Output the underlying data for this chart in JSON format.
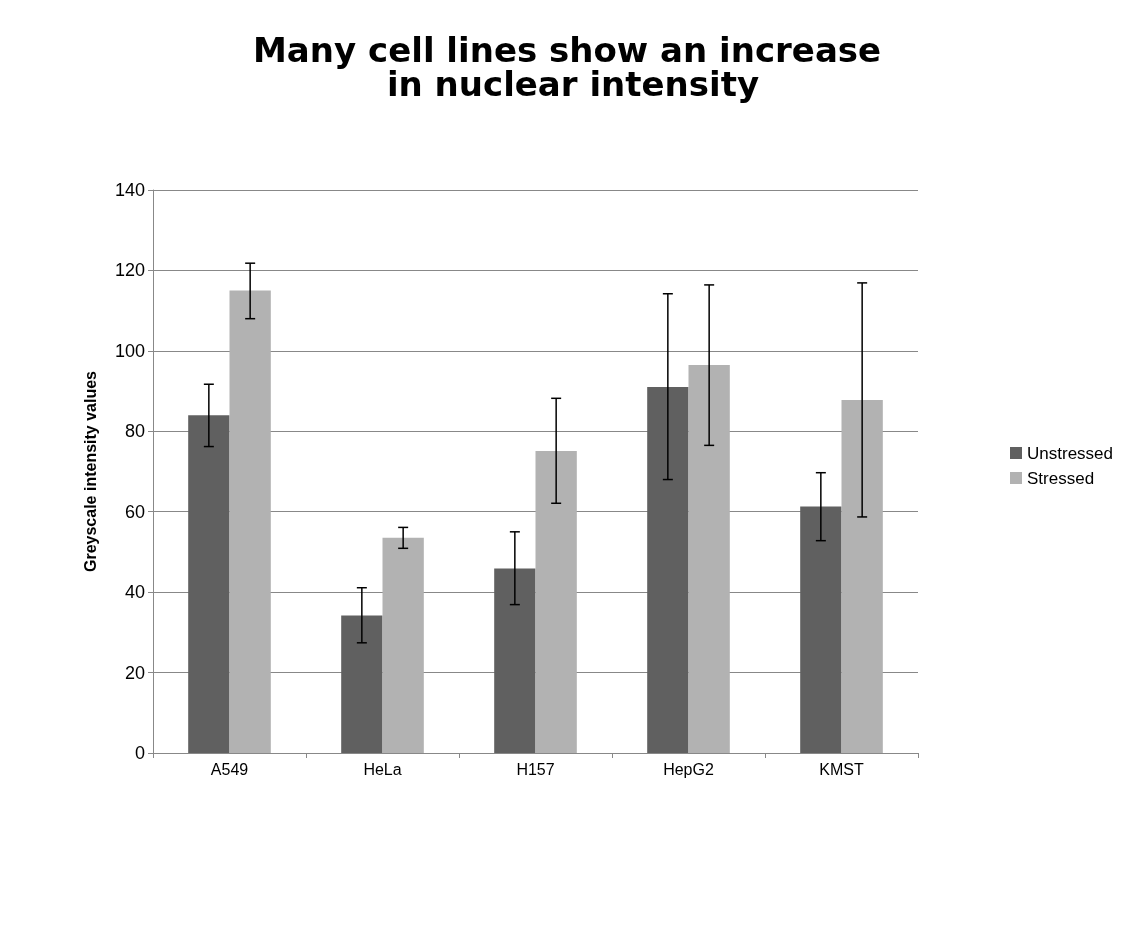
{
  "chart_data": {
    "type": "bar",
    "title": "Many cell lines show an increase in nuclear intensity",
    "ylabel": "Greyscale intensity values",
    "categories": [
      "A549",
      "HeLa",
      "H157",
      "HepG2",
      "KMST"
    ],
    "series": [
      {
        "name": "Unstressed",
        "color": "#606060",
        "values": [
          84,
          34.2,
          45.9,
          91,
          61.3
        ],
        "errors": [
          [
            76.2,
            91.7
          ],
          [
            27.4,
            41.1
          ],
          [
            36.9,
            55
          ],
          [
            68,
            114.2
          ],
          [
            52.8,
            69.7
          ]
        ]
      },
      {
        "name": "Stressed",
        "color": "#b2b2b2",
        "values": [
          115,
          53.5,
          75.1,
          96.5,
          87.8
        ],
        "errors": [
          [
            108,
            121.8
          ],
          [
            50.9,
            56.1
          ],
          [
            62.1,
            88.2
          ],
          [
            76.5,
            116.4
          ],
          [
            58.7,
            116.9
          ]
        ]
      }
    ],
    "ylim": [
      0,
      140
    ],
    "yticks": [
      0,
      20,
      40,
      60,
      80,
      100,
      120,
      140
    ],
    "grid": "y",
    "legend": "right"
  }
}
